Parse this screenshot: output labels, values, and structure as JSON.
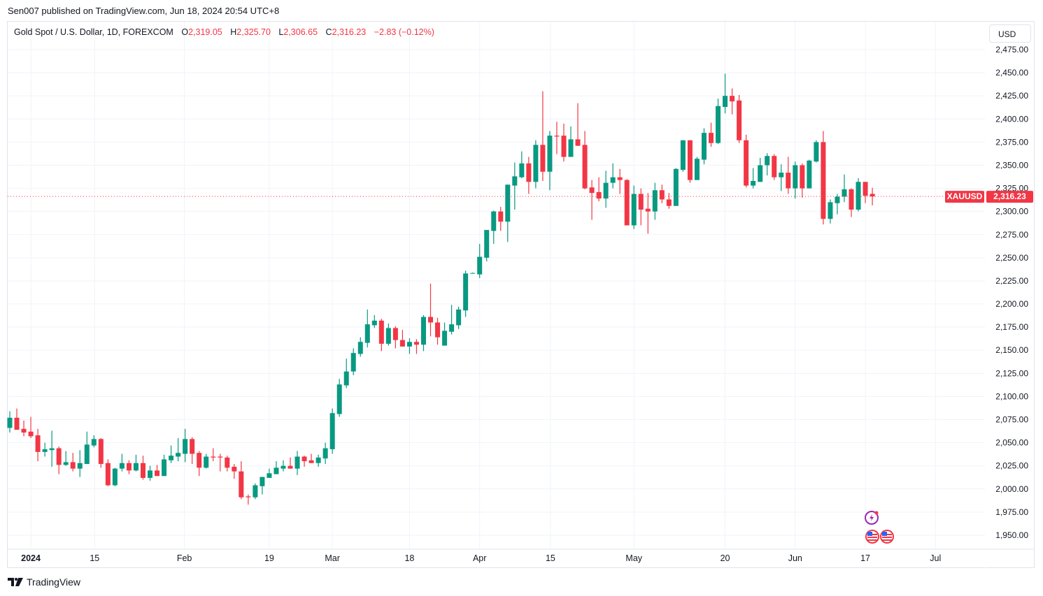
{
  "published": "Sen007 published on TradingView.com, Jun 18, 2024 20:54 UTC+8",
  "legend": {
    "symbol": "Gold Spot / U.S. Dollar, 1D, FOREXCOM",
    "o_label": "O",
    "o": "2,319.05",
    "h_label": "H",
    "h": "2,325.70",
    "l_label": "L",
    "l": "2,306.65",
    "c_label": "C",
    "c": "2,316.23",
    "change": "−2.83 (−0.12%)"
  },
  "currency_button": "USD",
  "price_tag": {
    "ticker": "XAUUSD",
    "price": "2,316.23",
    "value": 2316.23
  },
  "footer_brand": "TradingView",
  "colors": {
    "up": "#089981",
    "down": "#f23645",
    "grid": "#f0f3fa",
    "text": "#131722"
  },
  "chart_data": {
    "type": "candlestick",
    "title": "Gold Spot / U.S. Dollar, 1D, FOREXCOM",
    "ylim": [
      1940,
      2490
    ],
    "yticks": [
      1950,
      1975,
      2000,
      2025,
      2050,
      2075,
      2100,
      2125,
      2150,
      2175,
      2200,
      2225,
      2250,
      2275,
      2300,
      2325,
      2350,
      2375,
      2400,
      2425,
      2450,
      2475
    ],
    "ytick_labels": [
      "1,950.00",
      "1,975.00",
      "2,000.00",
      "2,025.00",
      "2,050.00",
      "2,075.00",
      "2,100.00",
      "2,125.00",
      "2,150.00",
      "2,175.00",
      "2,200.00",
      "2,225.00",
      "2,250.00",
      "2,275.00",
      "2,300.00",
      "2,325.00",
      "2,350.00",
      "2,375.00",
      "2,400.00",
      "2,425.00",
      "2,450.00",
      "2,475.00"
    ],
    "xticks": [
      {
        "label": "2024",
        "index": 3
      },
      {
        "label": "15",
        "index": 12.1
      },
      {
        "label": "Feb",
        "index": 24.9
      },
      {
        "label": "19",
        "index": 37
      },
      {
        "label": "Mar",
        "index": 46
      },
      {
        "label": "18",
        "index": 57
      },
      {
        "label": "Apr",
        "index": 67
      },
      {
        "label": "15",
        "index": 77.1
      },
      {
        "label": "May",
        "index": 89
      },
      {
        "label": "20",
        "index": 102
      },
      {
        "label": "Jun",
        "index": 112
      },
      {
        "label": "17",
        "index": 122
      },
      {
        "label": "Jul",
        "index": 132
      }
    ],
    "ohlc_fields": [
      "open",
      "high",
      "low",
      "close"
    ],
    "candles": [
      [
        2066,
        2084,
        2061,
        2077
      ],
      [
        2077,
        2087,
        2064,
        2064
      ],
      [
        2065,
        2074,
        2057,
        2061
      ],
      [
        2062,
        2078,
        2055,
        2057
      ],
      [
        2058,
        2065,
        2030,
        2040
      ],
      [
        2040,
        2050,
        2035,
        2043
      ],
      [
        2042,
        2063,
        2024,
        2044
      ],
      [
        2044,
        2046,
        2016,
        2026
      ],
      [
        2026,
        2041,
        2025,
        2029
      ],
      [
        2029,
        2039,
        2019,
        2022
      ],
      [
        2022,
        2042,
        2013,
        2028
      ],
      [
        2027,
        2062,
        2027,
        2048
      ],
      [
        2047,
        2058,
        2045,
        2054
      ],
      [
        2054,
        2055,
        2023,
        2027
      ],
      [
        2028,
        2032,
        2003,
        2004
      ],
      [
        2004,
        2023,
        2003,
        2022
      ],
      [
        2022,
        2038,
        2019,
        2028
      ],
      [
        2028,
        2031,
        2016,
        2020
      ],
      [
        2020,
        2037,
        2019,
        2028
      ],
      [
        2028,
        2036,
        2010,
        2012
      ],
      [
        2012,
        2025,
        2009,
        2020
      ],
      [
        2020,
        2026,
        2014,
        2014
      ],
      [
        2014,
        2037,
        2014,
        2032
      ],
      [
        2031,
        2047,
        2028,
        2036
      ],
      [
        2035,
        2055,
        2030,
        2039
      ],
      [
        2038,
        2065,
        2029,
        2054
      ],
      [
        2054,
        2056,
        2027,
        2038
      ],
      [
        2039,
        2041,
        2014,
        2023
      ],
      [
        2023,
        2038,
        2022,
        2035
      ],
      [
        2035,
        2044,
        2030,
        2034
      ],
      [
        2035,
        2038,
        2019,
        2034
      ],
      [
        2034,
        2036,
        2019,
        2023
      ],
      [
        2024,
        2027,
        2011,
        2019
      ],
      [
        2019,
        2030,
        1989,
        1991
      ],
      [
        1992,
        1994,
        1983,
        1991
      ],
      [
        1991,
        2006,
        1989,
        2004
      ],
      [
        2003,
        2013,
        1994,
        2013
      ],
      [
        2012,
        2022,
        2012,
        2017
      ],
      [
        2016,
        2030,
        2016,
        2023
      ],
      [
        2022,
        2031,
        2019,
        2025
      ],
      [
        2025,
        2034,
        2022,
        2022
      ],
      [
        2022,
        2041,
        2015,
        2035
      ],
      [
        2035,
        2036,
        2024,
        2030
      ],
      [
        2031,
        2038,
        2028,
        2028
      ],
      [
        2028,
        2037,
        2024,
        2034
      ],
      [
        2033,
        2050,
        2027,
        2044
      ],
      [
        2043,
        2087,
        2038,
        2082
      ],
      [
        2081,
        2119,
        2078,
        2113
      ],
      [
        2112,
        2141,
        2109,
        2127
      ],
      [
        2127,
        2152,
        2123,
        2147
      ],
      [
        2146,
        2164,
        2143,
        2159
      ],
      [
        2158,
        2194,
        2153,
        2178
      ],
      [
        2177,
        2188,
        2174,
        2182
      ],
      [
        2182,
        2184,
        2149,
        2157
      ],
      [
        2157,
        2179,
        2155,
        2174
      ],
      [
        2174,
        2176,
        2152,
        2161
      ],
      [
        2161,
        2172,
        2154,
        2154
      ],
      [
        2154,
        2163,
        2146,
        2159
      ],
      [
        2159,
        2162,
        2146,
        2156
      ],
      [
        2156,
        2188,
        2149,
        2186
      ],
      [
        2186,
        2222,
        2165,
        2180
      ],
      [
        2180,
        2185,
        2156,
        2164
      ],
      [
        2155,
        2180,
        2155,
        2171
      ],
      [
        2170,
        2199,
        2167,
        2178
      ],
      [
        2177,
        2197,
        2173,
        2194
      ],
      [
        2193,
        2236,
        2186,
        2233
      ],
      [
        2233,
        2234,
        2233,
        2233.5
      ],
      [
        2232,
        2265,
        2228,
        2251
      ],
      [
        2250,
        2280,
        2246,
        2280
      ],
      [
        2279,
        2301,
        2265,
        2300
      ],
      [
        2300,
        2305,
        2279,
        2289
      ],
      [
        2289,
        2329,
        2267,
        2329
      ],
      [
        2328,
        2353,
        2302,
        2338
      ],
      [
        2337,
        2365,
        2336,
        2352
      ],
      [
        2352,
        2359,
        2319,
        2332
      ],
      [
        2332,
        2377,
        2325,
        2372
      ],
      [
        2372,
        2430,
        2333,
        2343
      ],
      [
        2343,
        2387,
        2323,
        2382
      ],
      [
        2382,
        2397,
        2362,
        2381
      ],
      [
        2382,
        2395,
        2354,
        2359
      ],
      [
        2359,
        2392,
        2359,
        2378
      ],
      [
        2378,
        2417,
        2371,
        2371
      ],
      [
        2372,
        2387,
        2324,
        2325
      ],
      [
        2326,
        2334,
        2291,
        2320
      ],
      [
        2321,
        2337,
        2311,
        2314
      ],
      [
        2314,
        2344,
        2304,
        2331
      ],
      [
        2331,
        2352,
        2325,
        2337
      ],
      [
        2337,
        2346,
        2319,
        2334
      ],
      [
        2334,
        2335,
        2285,
        2285
      ],
      [
        2285,
        2328,
        2281,
        2319
      ],
      [
        2319,
        2325,
        2285,
        2302
      ],
      [
        2303,
        2320,
        2276,
        2300
      ],
      [
        2300,
        2331,
        2291,
        2323
      ],
      [
        2323,
        2329,
        2309,
        2313
      ],
      [
        2313,
        2320,
        2303,
        2306
      ],
      [
        2306,
        2347,
        2306,
        2346
      ],
      [
        2345,
        2377,
        2343,
        2377
      ],
      [
        2377,
        2377,
        2331,
        2334
      ],
      [
        2334,
        2359,
        2334,
        2357
      ],
      [
        2356,
        2390,
        2351,
        2385
      ],
      [
        2385,
        2396,
        2370,
        2374
      ],
      [
        2374,
        2422,
        2373,
        2414
      ],
      [
        2413,
        2449,
        2406,
        2425
      ],
      [
        2425,
        2433,
        2405,
        2419
      ],
      [
        2420,
        2426,
        2374,
        2377
      ],
      [
        2377,
        2383,
        2326,
        2328
      ],
      [
        2328,
        2347,
        2325,
        2333
      ],
      [
        2332,
        2358,
        2332,
        2350
      ],
      [
        2350,
        2363,
        2339,
        2360
      ],
      [
        2360,
        2362,
        2334,
        2337
      ],
      [
        2337,
        2351,
        2322,
        2342
      ],
      [
        2342,
        2359,
        2319,
        2325
      ],
      [
        2325,
        2354,
        2314,
        2350
      ],
      [
        2350,
        2352,
        2315,
        2325
      ],
      [
        2325,
        2356,
        2325,
        2355
      ],
      [
        2354,
        2377,
        2353,
        2375
      ],
      [
        2375,
        2387,
        2286,
        2292
      ],
      [
        2292,
        2313,
        2287,
        2310
      ],
      [
        2309,
        2319,
        2297,
        2316
      ],
      [
        2316,
        2340,
        2310,
        2324
      ],
      [
        2324,
        2325,
        2294,
        2302
      ],
      [
        2302,
        2336,
        2300,
        2332
      ],
      [
        2332,
        2332,
        2309,
        2317
      ],
      [
        2319.05,
        2325.7,
        2306.65,
        2316.23
      ]
    ]
  }
}
